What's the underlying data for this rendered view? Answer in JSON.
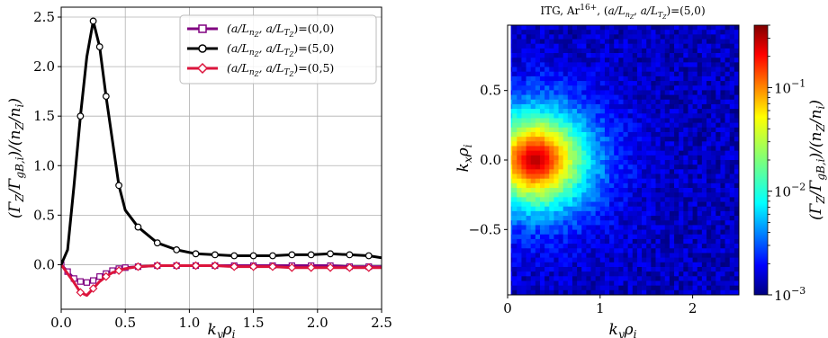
{
  "chart_data": [
    {
      "type": "line",
      "xlabel": "k_y ρ_i",
      "ylabel": "(Γ_Z/Γ_gB,i)/(n_Z/n_i)",
      "xlim": [
        0.0,
        2.5
      ],
      "ylim": [
        -0.45,
        2.6
      ],
      "grid": true,
      "legend_position": "top-right",
      "xticks": [
        "0.0",
        "0.5",
        "1.0",
        "1.5",
        "2.0",
        "2.5"
      ],
      "yticks": [
        "0.0",
        "0.5",
        "1.0",
        "1.5",
        "2.0",
        "2.5"
      ],
      "series": [
        {
          "name": "(a/L_nZ, a/L_TZ)=(0,0)",
          "color": "#800080",
          "marker": "square",
          "x": [
            0.0,
            0.05,
            0.1,
            0.15,
            0.2,
            0.25,
            0.3,
            0.35,
            0.4,
            0.45,
            0.5,
            0.6,
            0.75,
            0.9,
            1.05,
            1.2,
            1.35,
            1.5,
            1.65,
            1.8,
            1.95,
            2.1,
            2.25,
            2.4,
            2.5
          ],
          "values": [
            0.0,
            -0.07,
            -0.14,
            -0.17,
            -0.18,
            -0.16,
            -0.12,
            -0.09,
            -0.06,
            -0.04,
            -0.03,
            -0.02,
            -0.01,
            -0.01,
            -0.01,
            -0.01,
            -0.01,
            -0.01,
            -0.01,
            -0.01,
            -0.01,
            -0.01,
            -0.02,
            -0.02,
            -0.02
          ],
          "marker_every": [
            0,
            1,
            2,
            3,
            4,
            5,
            6,
            7,
            8,
            9,
            10,
            11,
            12,
            13,
            14,
            15,
            16,
            17,
            18,
            19,
            20,
            21,
            22,
            23
          ]
        },
        {
          "name": "(a/L_nZ, a/L_TZ)=(5,0)",
          "color": "#000000",
          "marker": "circle",
          "x": [
            0.0,
            0.05,
            0.1,
            0.15,
            0.2,
            0.25,
            0.3,
            0.35,
            0.4,
            0.45,
            0.5,
            0.6,
            0.75,
            0.9,
            1.05,
            1.2,
            1.35,
            1.5,
            1.65,
            1.8,
            1.95,
            2.1,
            2.25,
            2.4,
            2.5
          ],
          "values": [
            0.0,
            0.15,
            0.8,
            1.5,
            2.1,
            2.46,
            2.2,
            1.7,
            1.25,
            0.8,
            0.55,
            0.38,
            0.22,
            0.15,
            0.11,
            0.1,
            0.09,
            0.09,
            0.09,
            0.1,
            0.1,
            0.11,
            0.1,
            0.09,
            0.07
          ],
          "marker_every": [
            3,
            5,
            6,
            7,
            9,
            11,
            12,
            13,
            14,
            15,
            16,
            17,
            18,
            19,
            20,
            21,
            22,
            23
          ]
        },
        {
          "name": "(a/L_nZ, a/L_TZ)=(0,5)",
          "color": "#dc143c",
          "marker": "diamond",
          "x": [
            0.0,
            0.05,
            0.1,
            0.15,
            0.2,
            0.25,
            0.3,
            0.35,
            0.4,
            0.45,
            0.5,
            0.6,
            0.75,
            0.9,
            1.05,
            1.2,
            1.35,
            1.5,
            1.65,
            1.8,
            1.95,
            2.1,
            2.25,
            2.4,
            2.5
          ],
          "values": [
            0.0,
            -0.09,
            -0.18,
            -0.28,
            -0.31,
            -0.24,
            -0.17,
            -0.12,
            -0.08,
            -0.06,
            -0.04,
            -0.02,
            -0.01,
            -0.01,
            -0.01,
            -0.01,
            -0.02,
            -0.02,
            -0.02,
            -0.03,
            -0.03,
            -0.03,
            -0.03,
            -0.03,
            -0.03
          ],
          "marker_every": [
            3,
            5,
            7,
            9,
            11,
            12,
            13,
            14,
            15,
            16,
            17,
            18,
            19,
            20,
            21,
            22,
            23
          ]
        }
      ]
    },
    {
      "type": "heatmap",
      "title": "ITG, Ar^16+, (a/L_nZ, a/L_TZ)=(5,0)",
      "xlabel": "k_y ρ_i",
      "ylabel": "k_x ρ_i",
      "xlim": [
        0.0,
        2.5
      ],
      "ylim": [
        -0.97,
        0.97
      ],
      "xticks": [
        "0",
        "1",
        "2"
      ],
      "yticks": [
        "0.5",
        "0.0",
        "−0.5"
      ],
      "colorbar": {
        "label": "(Γ_Z/Γ_gB,i)/(n_Z/n_i)",
        "scale": "log",
        "range": [
          0.001,
          0.4
        ],
        "ticks": [
          "10^-1",
          "10^-2",
          "10^-3"
        ],
        "colormap": "jet"
      },
      "peak": {
        "ky": 0.3,
        "kx": 0.0,
        "value": 0.3
      },
      "peak_width_ky": 0.55,
      "peak_width_kx": 0.34,
      "background_value": 0.0014
    }
  ]
}
